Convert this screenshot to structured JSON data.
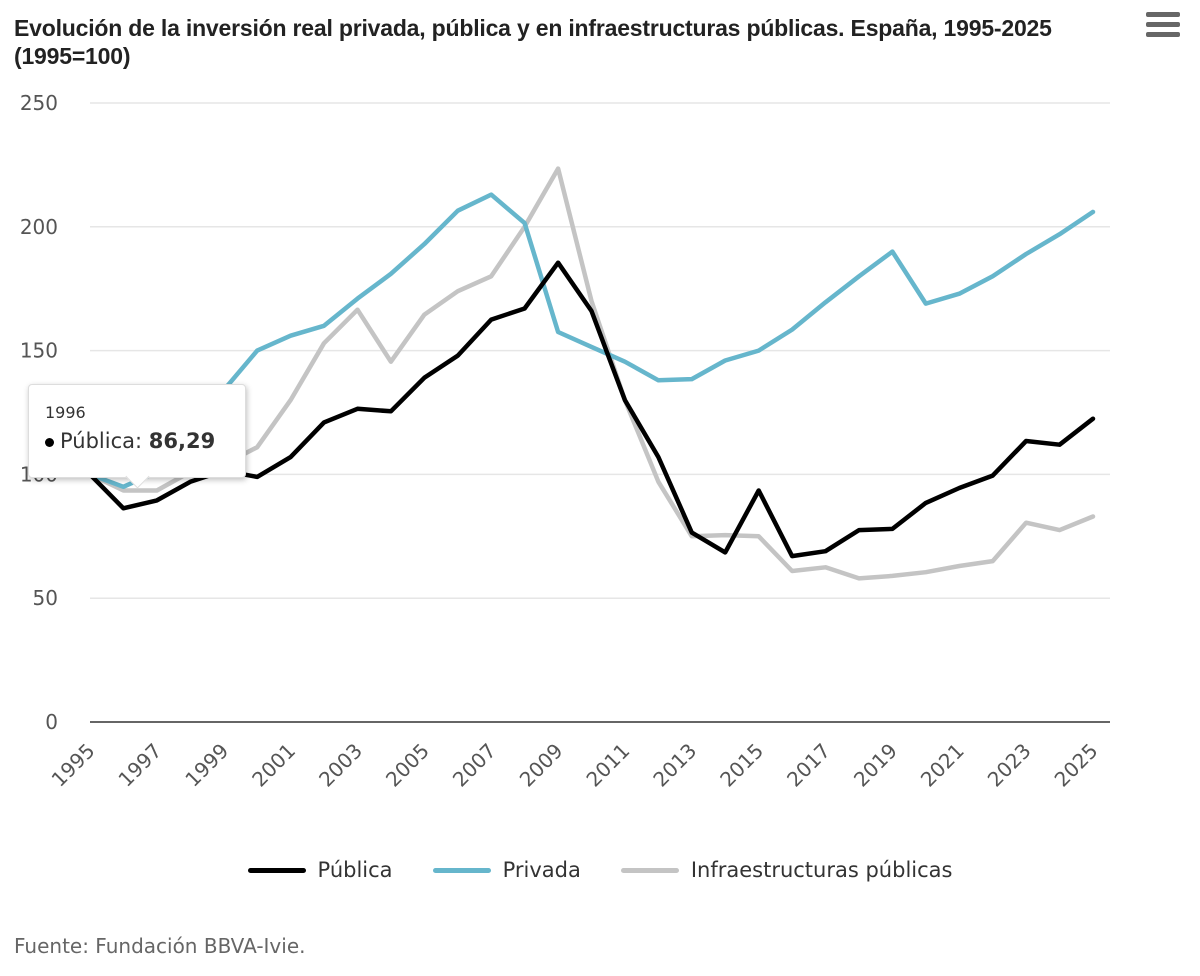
{
  "menu": {
    "icon": "hamburger-menu-icon"
  },
  "chart_data": {
    "type": "line",
    "title": "Evolución de la inversión real privada, pública y en infraestructuras públicas. España, 1995-2025 (1995=100)",
    "xlabel": "",
    "ylabel": "",
    "ylim": [
      0,
      250
    ],
    "yticks": [
      0,
      50,
      100,
      150,
      200,
      250
    ],
    "xlim": [
      1995,
      2025
    ],
    "x": [
      1995,
      1996,
      1997,
      1998,
      1999,
      2000,
      2001,
      2002,
      2003,
      2004,
      2005,
      2006,
      2007,
      2008,
      2009,
      2010,
      2011,
      2012,
      2013,
      2014,
      2015,
      2016,
      2017,
      2018,
      2019,
      2020,
      2021,
      2022,
      2023,
      2024,
      2025
    ],
    "xtick_labels": [
      "1995",
      "1997",
      "1999",
      "2001",
      "2003",
      "2005",
      "2007",
      "2009",
      "2011",
      "2013",
      "2015",
      "2017",
      "2019",
      "2021",
      "2023",
      "2025"
    ],
    "grid": true,
    "legend_position": "bottom",
    "series": [
      {
        "name": "Pública",
        "color": "#000000",
        "values": [
          100,
          86.29,
          89.5,
          97,
          101.5,
          99,
          107,
          121,
          126.5,
          125.5,
          139,
          148,
          162.5,
          167,
          185.5,
          166,
          130,
          107,
          76.5,
          68.5,
          93.5,
          67,
          69,
          77.5,
          78,
          88.5,
          94.5,
          99.5,
          113.5,
          112,
          122.5
        ]
      },
      {
        "name": "Privada",
        "color": "#66b6cc",
        "values": [
          100,
          95,
          101,
          118,
          134,
          150,
          156,
          160,
          171,
          181,
          193,
          206.5,
          213,
          201.5,
          157.5,
          151.5,
          145.5,
          138,
          138.5,
          146,
          150,
          158.5,
          169.5,
          180,
          190,
          169,
          173,
          180,
          189,
          197,
          206
        ]
      },
      {
        "name": "Infraestructuras públicas",
        "color": "#c4c4c4",
        "values": [
          100,
          93.5,
          93.5,
          101,
          104,
          111,
          130,
          153,
          166.5,
          145.5,
          164.5,
          174,
          180,
          200,
          223.5,
          170,
          130,
          97,
          75,
          75.5,
          75,
          61,
          62.5,
          58,
          59,
          60.5,
          63,
          65,
          80.5,
          77.5,
          83
        ]
      }
    ],
    "tooltip": {
      "year": "1996",
      "series": "Pública",
      "label": "Pública:",
      "value": "86,29"
    },
    "source": "Fuente: Fundación BBVA-Ivie."
  }
}
